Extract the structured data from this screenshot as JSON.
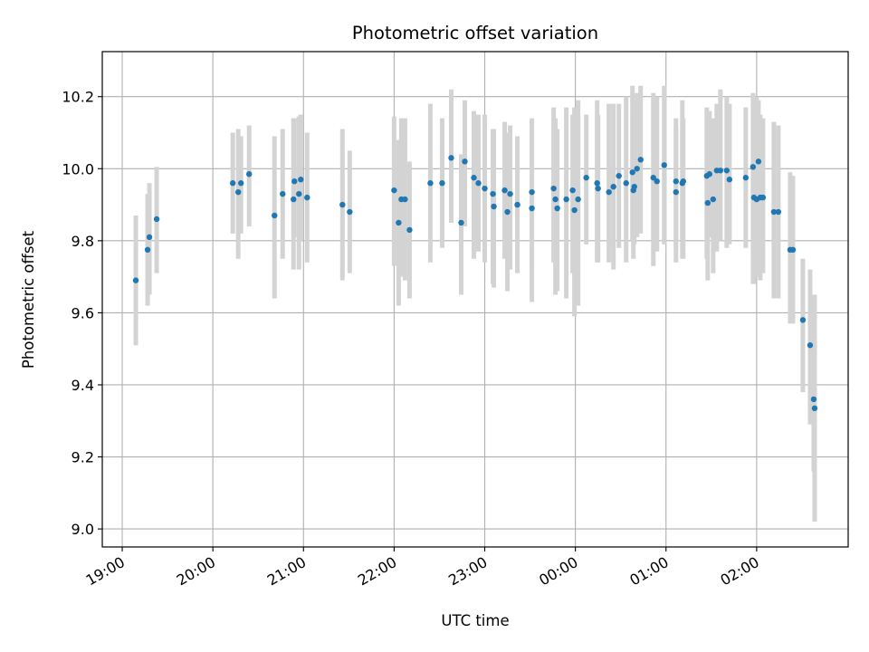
{
  "chart_data": {
    "type": "scatter",
    "title": "Photometric offset variation",
    "xlabel": "UTC time",
    "ylabel": "Photometric offset",
    "x_unit": "hours",
    "x_ticks": [
      {
        "value": 0,
        "label": "19:00"
      },
      {
        "value": 1,
        "label": "20:00"
      },
      {
        "value": 2,
        "label": "21:00"
      },
      {
        "value": 3,
        "label": "22:00"
      },
      {
        "value": 4,
        "label": "23:00"
      },
      {
        "value": 5,
        "label": "00:00"
      },
      {
        "value": 6,
        "label": "01:00"
      },
      {
        "value": 7,
        "label": "02:00"
      }
    ],
    "y_ticks": [
      {
        "value": 9.0,
        "label": "9.0"
      },
      {
        "value": 9.2,
        "label": "9.2"
      },
      {
        "value": 9.4,
        "label": "9.4"
      },
      {
        "value": 9.6,
        "label": "9.6"
      },
      {
        "value": 9.8,
        "label": "9.8"
      },
      {
        "value": 10.0,
        "label": "10.0"
      },
      {
        "value": 10.2,
        "label": "10.2"
      }
    ],
    "xlim": [
      -0.22,
      8.01
    ],
    "ylim": [
      8.95,
      10.325
    ],
    "grid": true,
    "colors": {
      "point": "#1f77b4",
      "errorbar": "#d3d3d3",
      "grid": "#b0b0b0"
    },
    "series": [
      {
        "points": [
          [
            0.15,
            9.69,
            9.51,
            9.87
          ],
          [
            0.28,
            9.775,
            9.62,
            9.93
          ],
          [
            0.3,
            9.81,
            9.65,
            9.96
          ],
          [
            0.38,
            9.86,
            9.71,
            10.005
          ],
          [
            1.22,
            9.96,
            9.82,
            10.1
          ],
          [
            1.28,
            9.935,
            9.75,
            10.11
          ],
          [
            1.31,
            9.96,
            9.82,
            10.09
          ],
          [
            1.4,
            9.985,
            9.84,
            10.12
          ],
          [
            1.68,
            9.87,
            9.64,
            10.09
          ],
          [
            1.77,
            9.93,
            9.75,
            10.11
          ],
          [
            1.89,
            9.915,
            9.72,
            10.14
          ],
          [
            1.9,
            9.965,
            9.81,
            10.14
          ],
          [
            1.95,
            9.93,
            9.72,
            10.145
          ],
          [
            1.97,
            9.97,
            9.8,
            10.15
          ],
          [
            2.04,
            9.92,
            9.74,
            10.1
          ],
          [
            2.43,
            9.9,
            9.69,
            10.11
          ],
          [
            2.51,
            9.88,
            9.71,
            10.05
          ],
          [
            3.0,
            9.94,
            9.73,
            10.145
          ],
          [
            3.05,
            9.85,
            9.62,
            10.08
          ],
          [
            3.08,
            9.915,
            9.7,
            10.14
          ],
          [
            3.12,
            9.915,
            9.69,
            10.14
          ],
          [
            3.17,
            9.83,
            9.64,
            10.02
          ],
          [
            3.4,
            9.96,
            9.74,
            10.18
          ],
          [
            3.53,
            9.96,
            9.78,
            10.14
          ],
          [
            3.63,
            10.03,
            9.85,
            10.22
          ],
          [
            3.74,
            9.85,
            9.65,
            10.04
          ],
          [
            3.78,
            10.02,
            9.84,
            10.19
          ],
          [
            3.88,
            9.975,
            9.75,
            10.16
          ],
          [
            3.93,
            9.96,
            9.77,
            10.15
          ],
          [
            4.0,
            9.945,
            9.74,
            10.15
          ],
          [
            4.09,
            9.93,
            9.68,
            10.11
          ],
          [
            4.1,
            9.895,
            9.67,
            10.11
          ],
          [
            4.22,
            9.94,
            9.75,
            10.13
          ],
          [
            4.25,
            9.88,
            9.66,
            10.1
          ],
          [
            4.28,
            9.93,
            9.72,
            10.12
          ],
          [
            4.36,
            9.9,
            9.71,
            10.09
          ],
          [
            4.52,
            9.935,
            9.73,
            10.14
          ],
          [
            4.52,
            9.89,
            9.63,
            10.11
          ],
          [
            4.76,
            9.945,
            9.74,
            10.17
          ],
          [
            4.78,
            9.915,
            9.65,
            10.14
          ],
          [
            4.8,
            9.89,
            9.66,
            10.11
          ],
          [
            4.9,
            9.915,
            9.64,
            10.17
          ],
          [
            4.97,
            9.94,
            9.71,
            10.15
          ],
          [
            4.99,
            9.885,
            9.59,
            10.17
          ],
          [
            5.03,
            9.915,
            9.62,
            10.19
          ],
          [
            5.12,
            9.975,
            9.79,
            10.15
          ],
          [
            5.24,
            9.96,
            9.74,
            10.19
          ],
          [
            5.25,
            9.945,
            9.74,
            10.15
          ],
          [
            5.37,
            9.935,
            9.74,
            10.18
          ],
          [
            5.42,
            9.95,
            9.72,
            10.18
          ],
          [
            5.48,
            9.98,
            9.78,
            10.18
          ],
          [
            5.56,
            9.96,
            9.74,
            10.2
          ],
          [
            5.63,
            9.99,
            9.8,
            10.23
          ],
          [
            5.64,
            9.94,
            9.75,
            10.14
          ],
          [
            5.65,
            9.95,
            9.79,
            10.19
          ],
          [
            5.68,
            10.0,
            9.81,
            10.21
          ],
          [
            5.72,
            10.025,
            9.82,
            10.23
          ],
          [
            5.86,
            9.975,
            9.73,
            10.21
          ],
          [
            5.9,
            9.965,
            9.77,
            10.2
          ],
          [
            5.98,
            10.01,
            9.79,
            10.23
          ],
          [
            6.11,
            9.965,
            9.78,
            10.14
          ],
          [
            6.11,
            9.935,
            9.74,
            10.12
          ],
          [
            6.18,
            9.96,
            9.75,
            10.19
          ],
          [
            6.19,
            9.965,
            9.75,
            10.14
          ],
          [
            6.45,
            9.98,
            9.75,
            10.17
          ],
          [
            6.46,
            9.905,
            9.69,
            10.15
          ],
          [
            6.48,
            9.985,
            9.81,
            10.16
          ],
          [
            6.52,
            9.915,
            9.71,
            10.14
          ],
          [
            6.56,
            9.995,
            9.77,
            10.18
          ],
          [
            6.6,
            9.995,
            9.8,
            10.22
          ],
          [
            6.67,
            9.995,
            9.78,
            10.2
          ],
          [
            6.7,
            9.97,
            9.79,
            10.18
          ],
          [
            6.88,
            9.975,
            9.78,
            10.17
          ],
          [
            6.96,
            10.005,
            9.68,
            10.21
          ],
          [
            6.97,
            9.92,
            9.68,
            10.19
          ],
          [
            7.0,
            9.915,
            9.7,
            10.2
          ],
          [
            7.02,
            10.02,
            9.83,
            10.19
          ],
          [
            7.04,
            9.92,
            9.69,
            10.15
          ],
          [
            7.07,
            9.92,
            9.71,
            10.14
          ],
          [
            7.19,
            9.88,
            9.64,
            10.13
          ],
          [
            7.24,
            9.88,
            9.64,
            10.12
          ],
          [
            7.37,
            9.775,
            9.57,
            9.99
          ],
          [
            7.4,
            9.775,
            9.57,
            9.98
          ],
          [
            7.51,
            9.58,
            9.38,
            9.75
          ],
          [
            7.59,
            9.51,
            9.29,
            9.72
          ],
          [
            7.63,
            9.36,
            9.16,
            9.57
          ],
          [
            7.64,
            9.335,
            9.02,
            9.65
          ]
        ]
      }
    ]
  }
}
